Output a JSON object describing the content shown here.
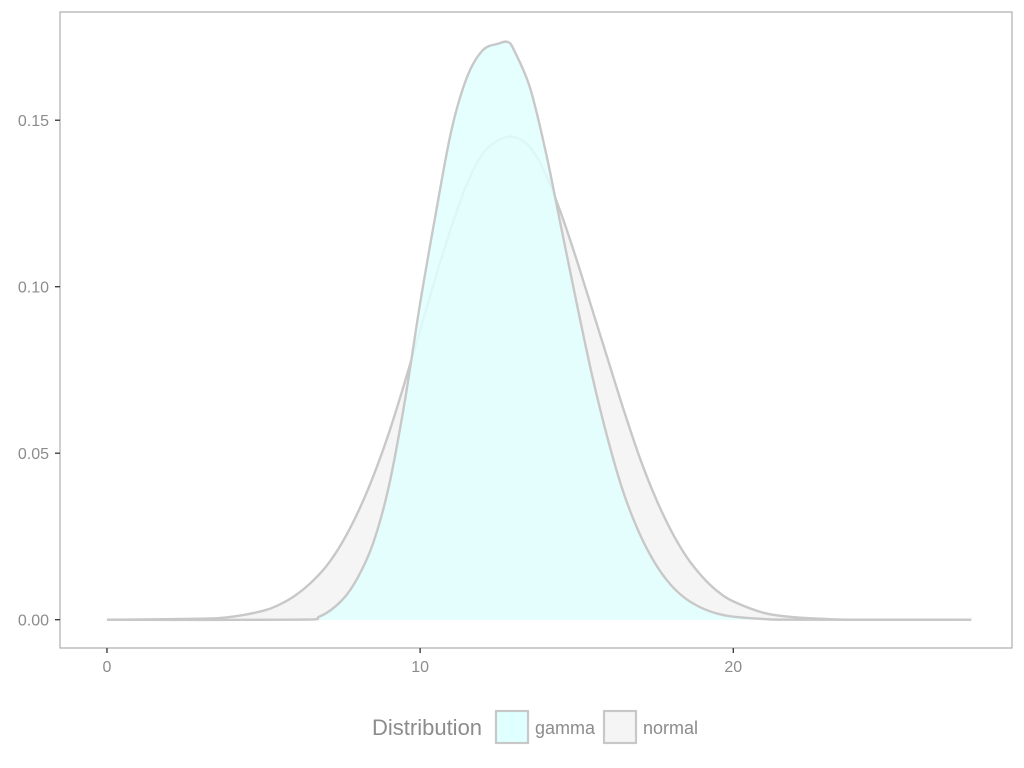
{
  "chart_data": {
    "type": "area",
    "title": "",
    "xlabel": "",
    "ylabel": "",
    "xlim": [
      -1.5,
      28.9
    ],
    "ylim": [
      -0.0085,
      0.1825
    ],
    "x_ticks": [
      0,
      10,
      20
    ],
    "x_tick_labels": [
      "0",
      "10",
      "20"
    ],
    "y_ticks": [
      0,
      0.05,
      0.1,
      0.15
    ],
    "y_tick_labels": [
      "0.00",
      "0.05",
      "0.10",
      "0.15"
    ],
    "grid": false,
    "legend": {
      "title": "Distribution",
      "position": "bottom"
    },
    "series": [
      {
        "name": "gamma",
        "fill": "#e0ffff",
        "stroke": "#c8c8c8",
        "x": [
          0,
          6,
          6.8,
          7.5,
          8,
          8.5,
          9,
          9.5,
          10,
          10.5,
          11,
          11.5,
          12,
          12.5,
          12.8,
          13,
          13.5,
          14,
          14.5,
          15,
          15.5,
          16,
          16.5,
          17,
          17.5,
          18,
          18.5,
          19,
          19.5,
          20,
          21,
          22,
          27.6
        ],
        "values": [
          0,
          0,
          0.001,
          0.0058,
          0.0125,
          0.023,
          0.04,
          0.065,
          0.095,
          0.122,
          0.147,
          0.163,
          0.171,
          0.173,
          0.1735,
          0.171,
          0.16,
          0.141,
          0.118,
          0.095,
          0.073,
          0.054,
          0.038,
          0.026,
          0.017,
          0.0105,
          0.0062,
          0.0035,
          0.0018,
          0.0009,
          0.0002,
          0,
          0
        ]
      },
      {
        "name": "normal",
        "fill": "#f5f5f5",
        "stroke": "#c8c8c8",
        "x": [
          0,
          3,
          4,
          5,
          5.5,
          6,
          6.5,
          7,
          7.5,
          8,
          8.5,
          9,
          9.5,
          10,
          10.5,
          11,
          11.5,
          12,
          12.5,
          13,
          13.5,
          14,
          14.5,
          15,
          15.5,
          16,
          16.5,
          17,
          17.5,
          18,
          18.5,
          19,
          19.5,
          20,
          21,
          22,
          23,
          24,
          27.6
        ],
        "values": [
          0,
          0.0003,
          0.0009,
          0.0027,
          0.0045,
          0.0072,
          0.011,
          0.016,
          0.023,
          0.032,
          0.043,
          0.056,
          0.071,
          0.087,
          0.103,
          0.118,
          0.131,
          0.14,
          0.144,
          0.145,
          0.142,
          0.134,
          0.122,
          0.108,
          0.093,
          0.078,
          0.063,
          0.049,
          0.037,
          0.027,
          0.019,
          0.013,
          0.0085,
          0.0055,
          0.002,
          0.0007,
          0.0002,
          0,
          0
        ]
      }
    ]
  }
}
